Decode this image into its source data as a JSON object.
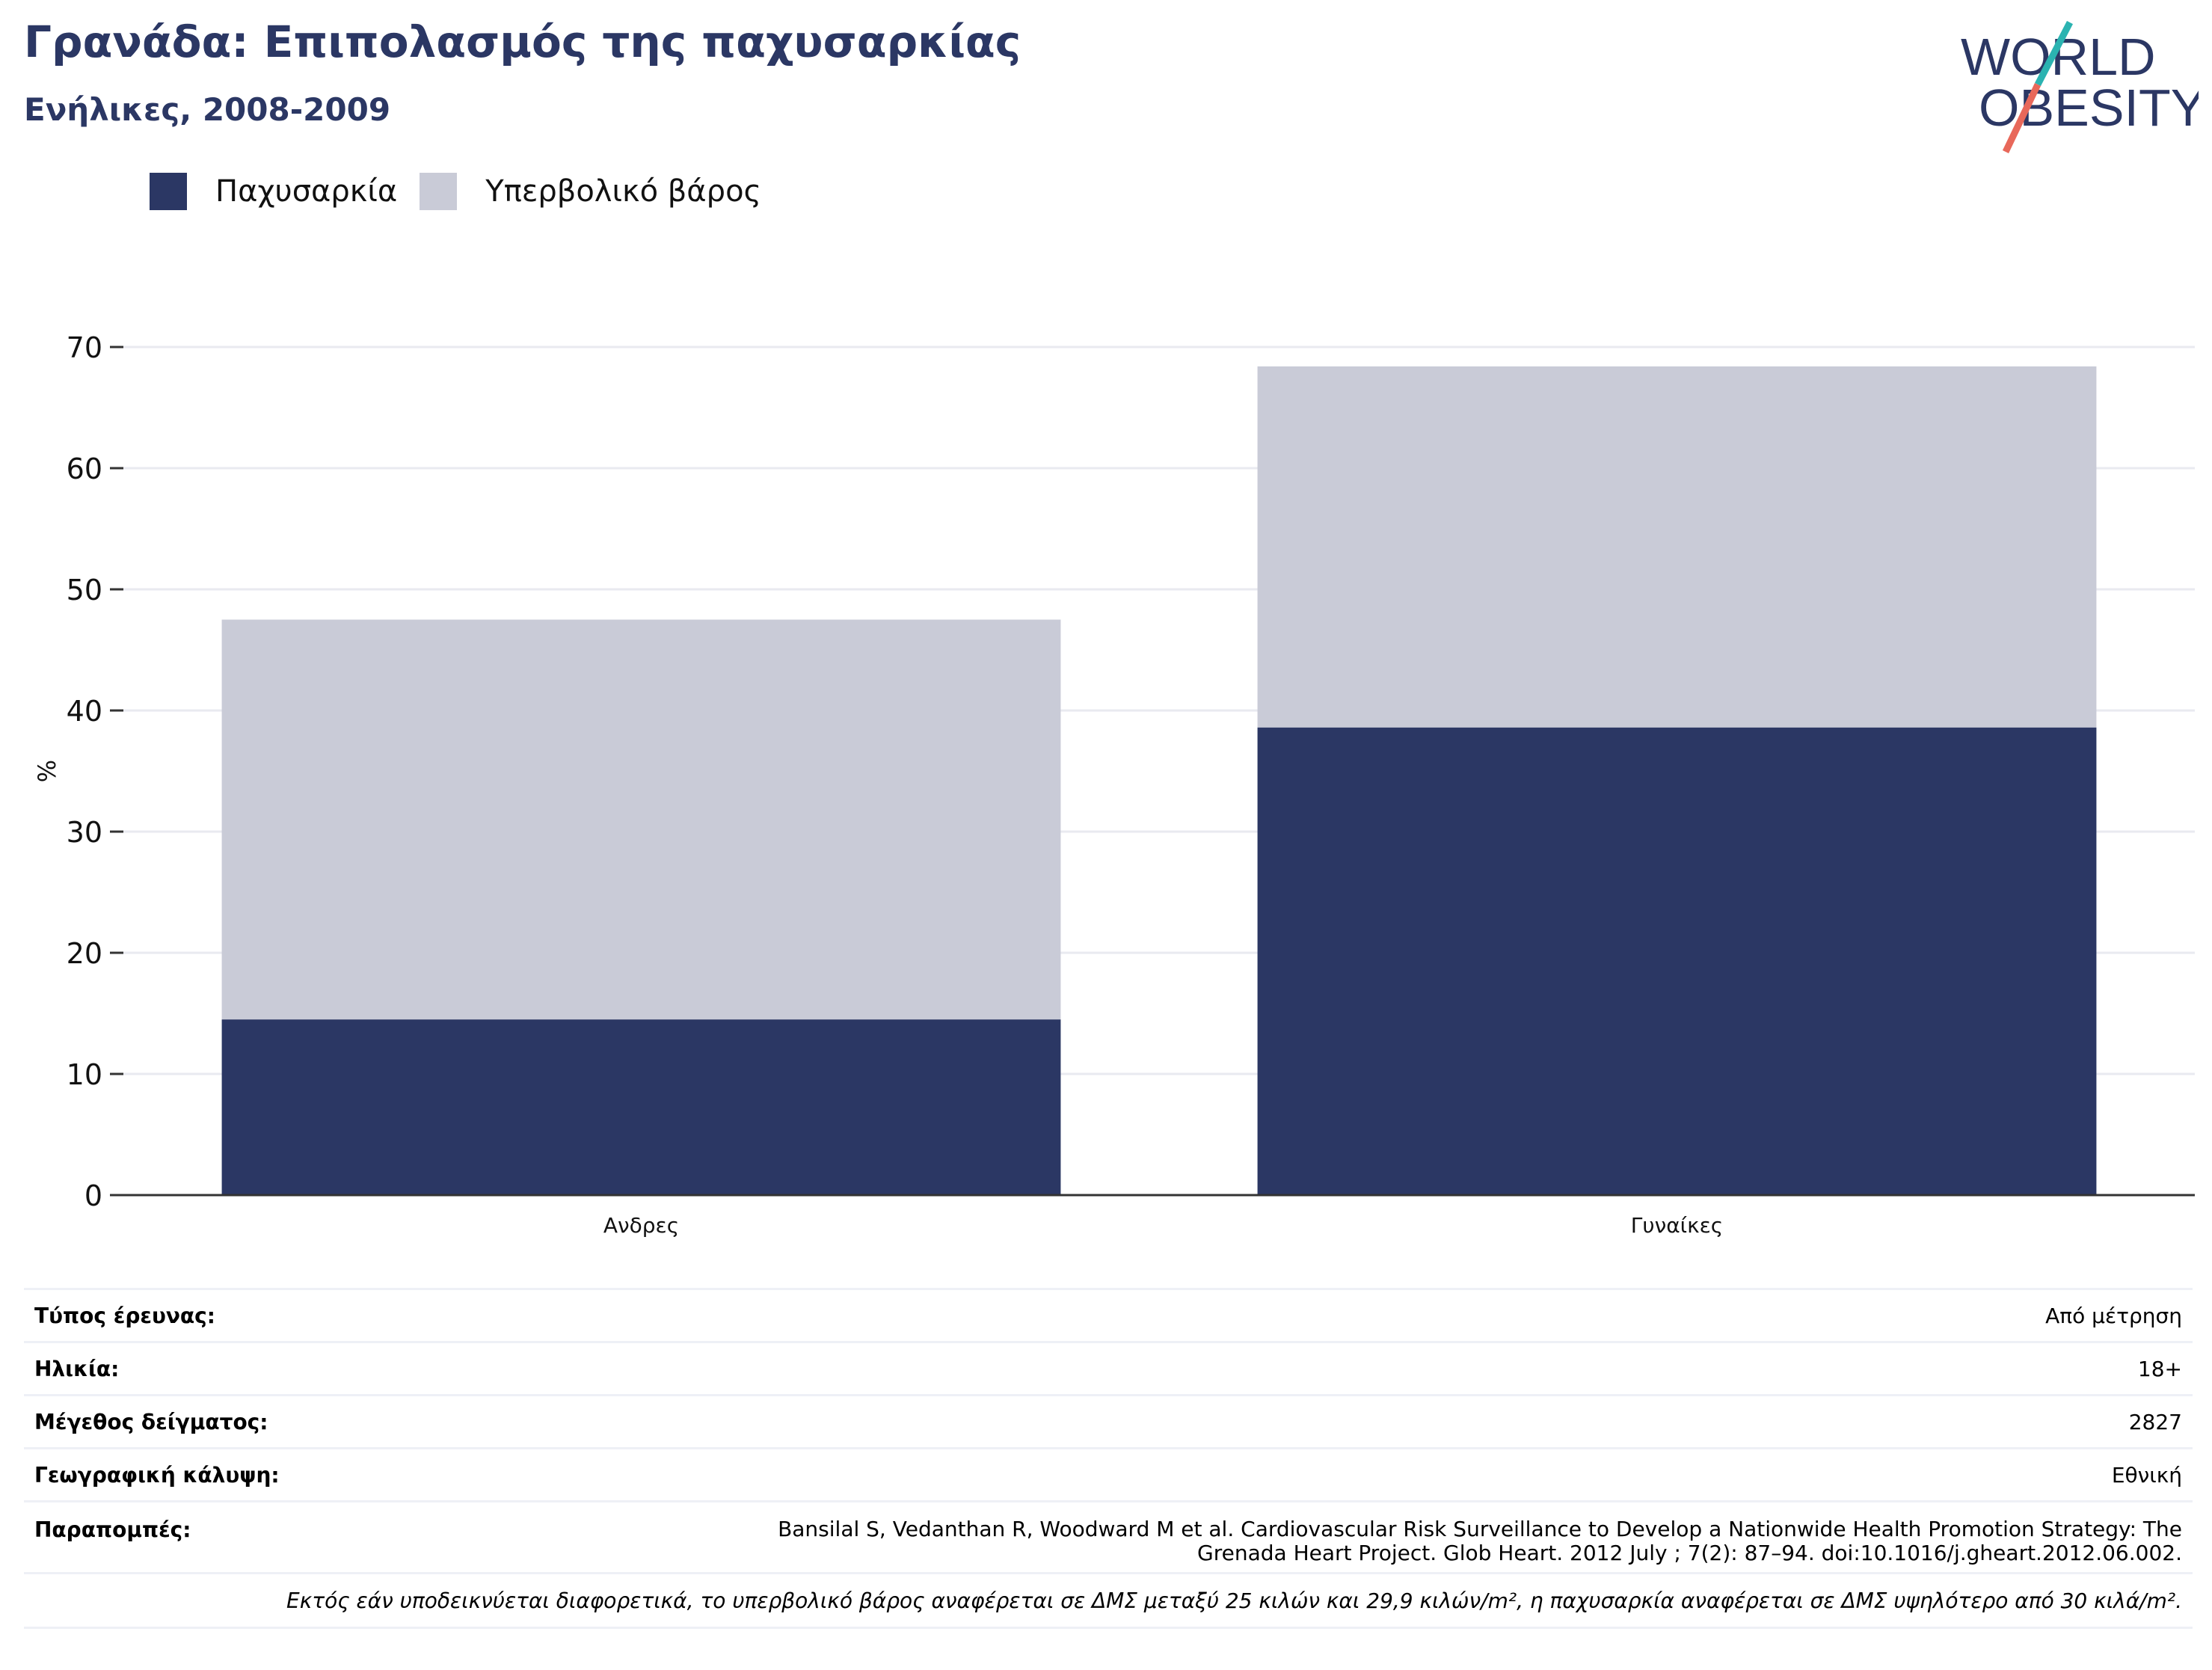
{
  "header": {
    "title": "Γρανάδα: Επιπολασμός της παχυσαρκίας",
    "subtitle": "Ενήλικες, 2008-2009"
  },
  "logo": {
    "line1": "WORLD",
    "line2": "OBESITY",
    "colors": {
      "text": "#2b3764",
      "teal": "#2bb3b1",
      "coral": "#e8685a"
    }
  },
  "legend": [
    {
      "label": "Παχυσαρκία",
      "color": "#2b3764"
    },
    {
      "label": "Υπερβολικό βάρος",
      "color": "#c9cbd7"
    }
  ],
  "chart_data": {
    "type": "bar",
    "stacked": true,
    "categories": [
      "Ανδρες",
      "Γυναίκες"
    ],
    "series": [
      {
        "name": "Παχυσαρκία",
        "values": [
          14.5,
          38.6
        ],
        "color": "#2b3764"
      },
      {
        "name": "Υπερβολικό βάρος",
        "values": [
          33.0,
          29.8
        ],
        "color": "#c9cbd7"
      }
    ],
    "ylabel": "%",
    "ylim": [
      0,
      70
    ],
    "yticks": [
      0,
      10,
      20,
      30,
      40,
      50,
      60,
      70
    ],
    "grid": true,
    "legend_position": "top-left"
  },
  "info": {
    "survey_type": {
      "label": "Τύπος έρευνας:",
      "value": "Από μέτρηση"
    },
    "age": {
      "label": "Ηλικία:",
      "value": "18+"
    },
    "sample_size": {
      "label": "Μέγεθος δείγματος:",
      "value": "2827"
    },
    "coverage": {
      "label": "Γεωγραφική κάλυψη:",
      "value": "Εθνική"
    },
    "references": {
      "label": "Παραπομπές:",
      "line1": "Bansilal S, Vedanthan R, Woodward M et al. Cardiovascular Risk Surveillance to Develop a Nationwide Health Promotion Strategy: The",
      "line2": "Grenada Heart Project. Glob Heart. 2012 July ; 7(2): 87–94. doi:10.1016/j.gheart.2012.06.002."
    },
    "note": "Εκτός εάν υποδεικνύεται διαφορετικά, το υπερβολικό βάρος αναφέρεται σε ΔΜΣ μεταξύ 25 κιλών και 29,9 κιλών/m², η παχυσαρκία αναφέρεται σε ΔΜΣ υψηλότερο από 30 κιλά/m²."
  }
}
